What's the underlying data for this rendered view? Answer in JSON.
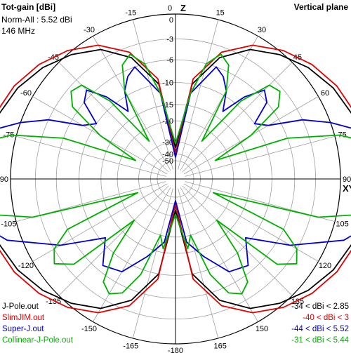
{
  "header": {
    "title": "Tot-gain [dBi]",
    "norm": "Norm-All : 5.52 dBi",
    "freq": "146 MHz",
    "plane": "Vertical plane"
  },
  "chart_data": {
    "type": "polar",
    "plane": "Vertical plane",
    "radial_unit": "dBi",
    "radial_scale": "log (ARRL-style), normalized to 5.52 dBi",
    "radial_tick_labels": [
      "0",
      "-3",
      "-6",
      "-10",
      "-15",
      "-20",
      "-30",
      "-40",
      "-50"
    ],
    "angle_tick_labels": [
      "0",
      "-15",
      "-30",
      "-45",
      "-60",
      "-75",
      "-90",
      "-105",
      "-120",
      "-135",
      "-150",
      "-165",
      "-180",
      "165",
      "150",
      "135",
      "120",
      "105",
      "90",
      "75",
      "60",
      "45",
      "30",
      "15"
    ],
    "axis_labels": {
      "top": "Z",
      "right": "XY"
    },
    "grid": true,
    "legend_position": "bottom",
    "series": [
      {
        "name": "J-Pole.out",
        "range": "-34 < dBi < 2.85",
        "color": "#000000",
        "elevation_deg": [
          0,
          10,
          20,
          30,
          40,
          50,
          60,
          70,
          80,
          90,
          100,
          110,
          120,
          130,
          140,
          150,
          160,
          170,
          180
        ],
        "gain_dbi": [
          -34,
          -10,
          -4.5,
          -1.8,
          -0.3,
          0.9,
          1.8,
          2.4,
          2.75,
          2.85,
          2.75,
          2.4,
          1.8,
          0.9,
          -0.3,
          -1.8,
          -4.5,
          -10,
          -34
        ]
      },
      {
        "name": "SlimJIM.out",
        "range": "-40 < dBi < 3",
        "color": "#e00000",
        "elevation_deg": [
          0,
          10,
          20,
          30,
          40,
          50,
          60,
          70,
          80,
          90,
          100,
          110,
          120,
          130,
          140,
          150,
          160,
          170,
          180
        ],
        "gain_dbi": [
          -40,
          -9,
          -3.7,
          -1.2,
          0.3,
          1.4,
          2.2,
          2.7,
          2.95,
          3.0,
          2.95,
          2.7,
          2.2,
          1.4,
          0.3,
          -1.2,
          -3.7,
          -9,
          -40
        ]
      },
      {
        "name": "Super-J.out",
        "range": "-44 < dBi < 5.52",
        "color": "#0000d0",
        "elevation_deg": [
          0,
          10,
          20,
          25,
          30,
          35,
          40,
          45,
          50,
          55,
          60,
          65,
          70,
          75,
          80,
          85,
          90,
          100,
          110,
          120,
          130,
          140,
          150,
          160,
          170,
          180
        ],
        "gain_dbi": [
          -44,
          -12,
          -6,
          -7,
          -9,
          -13,
          -8,
          -5,
          -6,
          -10,
          -8,
          -3,
          0,
          2.5,
          4.5,
          5.3,
          5.52,
          4.6,
          1.5,
          -4,
          -11,
          -7,
          -8,
          -13,
          -18,
          -44
        ]
      },
      {
        "name": "Collinear-J-Pole.out",
        "range": "-31 < dBi < 5.44",
        "color": "#00b000",
        "elevation_deg": [
          0,
          10,
          15,
          20,
          25,
          30,
          35,
          40,
          45,
          50,
          55,
          60,
          65,
          70,
          75,
          80,
          85,
          90,
          100,
          105,
          110,
          115,
          120,
          125,
          130,
          135,
          140,
          145,
          150,
          155,
          160,
          165,
          170,
          180
        ],
        "gain_dbi": [
          -31,
          -12,
          -6,
          -4,
          -5,
          -9,
          -25,
          -9,
          -4,
          -3.5,
          -5,
          -12,
          -26,
          -6,
          0.5,
          3.8,
          5.1,
          5.44,
          3.5,
          -2,
          -28,
          -6,
          -3,
          -2,
          -4,
          -20,
          -10,
          -5,
          -4,
          -5,
          -9,
          -20,
          -16,
          -31
        ]
      }
    ]
  }
}
